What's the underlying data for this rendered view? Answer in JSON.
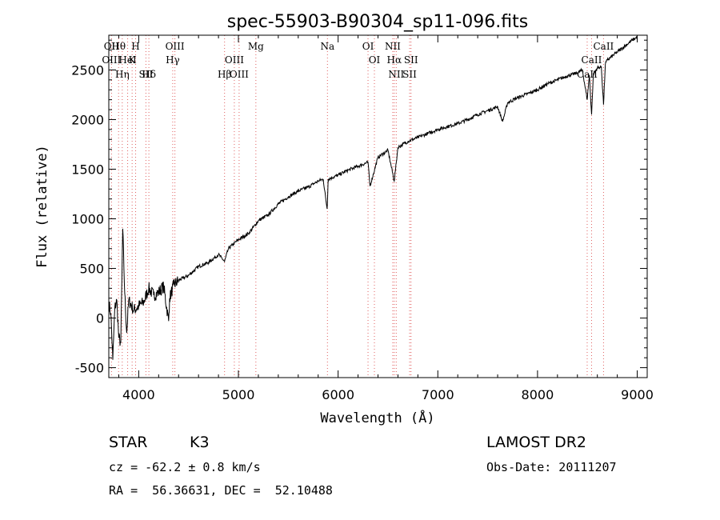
{
  "chart_data": {
    "type": "line",
    "title": "spec-55903-B90304_sp11-096.fits",
    "xlabel": "Wavelength (Å)",
    "ylabel": "Flux (relative)",
    "xlim": [
      3700,
      9100
    ],
    "ylim": [
      -600,
      2850
    ],
    "xticks": [
      4000,
      5000,
      6000,
      7000,
      8000,
      9000
    ],
    "yticks": [
      -500,
      0,
      500,
      1000,
      1500,
      2000,
      2500
    ],
    "grid": false,
    "series": [
      {
        "x": [
          3700,
          3720,
          3740,
          3760,
          3780,
          3800,
          3820,
          3840,
          3860,
          3880,
          3900,
          3950,
          4000,
          4050,
          4100,
          4150,
          4200,
          4250,
          4300,
          4310,
          4350,
          4400,
          4500,
          4600,
          4700,
          4800,
          4861,
          4900,
          5000,
          5100,
          5200,
          5300,
          5400,
          5500,
          5600,
          5700,
          5800,
          5850,
          5890,
          5900,
          6000,
          6100,
          6200,
          6300,
          6320,
          6400,
          6500,
          6563,
          6600,
          6700,
          6800,
          6900,
          7000,
          7100,
          7200,
          7300,
          7400,
          7500,
          7600,
          7650,
          7700,
          7800,
          7900,
          8000,
          8100,
          8200,
          8300,
          8400,
          8450,
          8498,
          8520,
          8542,
          8560,
          8600,
          8640,
          8662,
          8680,
          8700,
          8800,
          8900,
          8950,
          8980,
          9000
        ],
        "y": [
          150,
          50,
          -420,
          100,
          180,
          -200,
          -250,
          900,
          250,
          -150,
          180,
          80,
          120,
          160,
          300,
          230,
          260,
          320,
          -30,
          200,
          330,
          380,
          430,
          520,
          560,
          640,
          570,
          700,
          790,
          850,
          980,
          1040,
          1150,
          1220,
          1280,
          1320,
          1380,
          1400,
          1100,
          1400,
          1440,
          1490,
          1530,
          1570,
          1330,
          1620,
          1690,
          1380,
          1720,
          1780,
          1820,
          1860,
          1900,
          1930,
          1960,
          2000,
          2050,
          2090,
          2130,
          1980,
          2170,
          2220,
          2260,
          2300,
          2360,
          2400,
          2440,
          2470,
          2500,
          2200,
          2450,
          2050,
          2460,
          2520,
          2530,
          2150,
          2560,
          2600,
          2680,
          2760,
          2800,
          2820,
          2830
        ]
      }
    ],
    "annotations": [
      {
        "text": "Hθ",
        "x": 3798
      },
      {
        "text": "K",
        "x": 3934
      },
      {
        "text": "Hδ",
        "x": 4102
      },
      {
        "text": "OII",
        "x": 3727
      },
      {
        "text": "HeI",
        "x": 3889
      },
      {
        "text": "SII",
        "x": 4072
      },
      {
        "text": "OIII",
        "x": 4363
      },
      {
        "text": "OIII",
        "x": 3727
      },
      {
        "text": "Hη",
        "x": 3835
      },
      {
        "text": "H",
        "x": 3969
      },
      {
        "text": "Hγ",
        "x": 4341
      },
      {
        "text": "Hβ",
        "x": 4861
      },
      {
        "text": "Mg",
        "x": 5175
      },
      {
        "text": "OIII",
        "x": 4959
      },
      {
        "text": "OIII",
        "x": 5007
      },
      {
        "text": "Na",
        "x": 5893
      },
      {
        "text": "OI",
        "x": 6364
      },
      {
        "text": "NII",
        "x": 6583
      },
      {
        "text": "OI",
        "x": 6300
      },
      {
        "text": "Hα",
        "x": 6563
      },
      {
        "text": "SII",
        "x": 6717
      },
      {
        "text": "NII",
        "x": 6548
      },
      {
        "text": "SII",
        "x": 6731
      },
      {
        "text": "CaII",
        "x": 8498
      },
      {
        "text": "CaII",
        "x": 8662
      },
      {
        "text": "CaII",
        "x": 8542
      }
    ]
  },
  "info": {
    "class": "STAR",
    "subclass": "K3",
    "survey": "LAMOST DR2",
    "cz": "cz = -62.2 ± 0.8 km/s",
    "obs_date": "Obs-Date: 20111207",
    "radec": "RA =  56.36631, DEC =  52.10488"
  }
}
